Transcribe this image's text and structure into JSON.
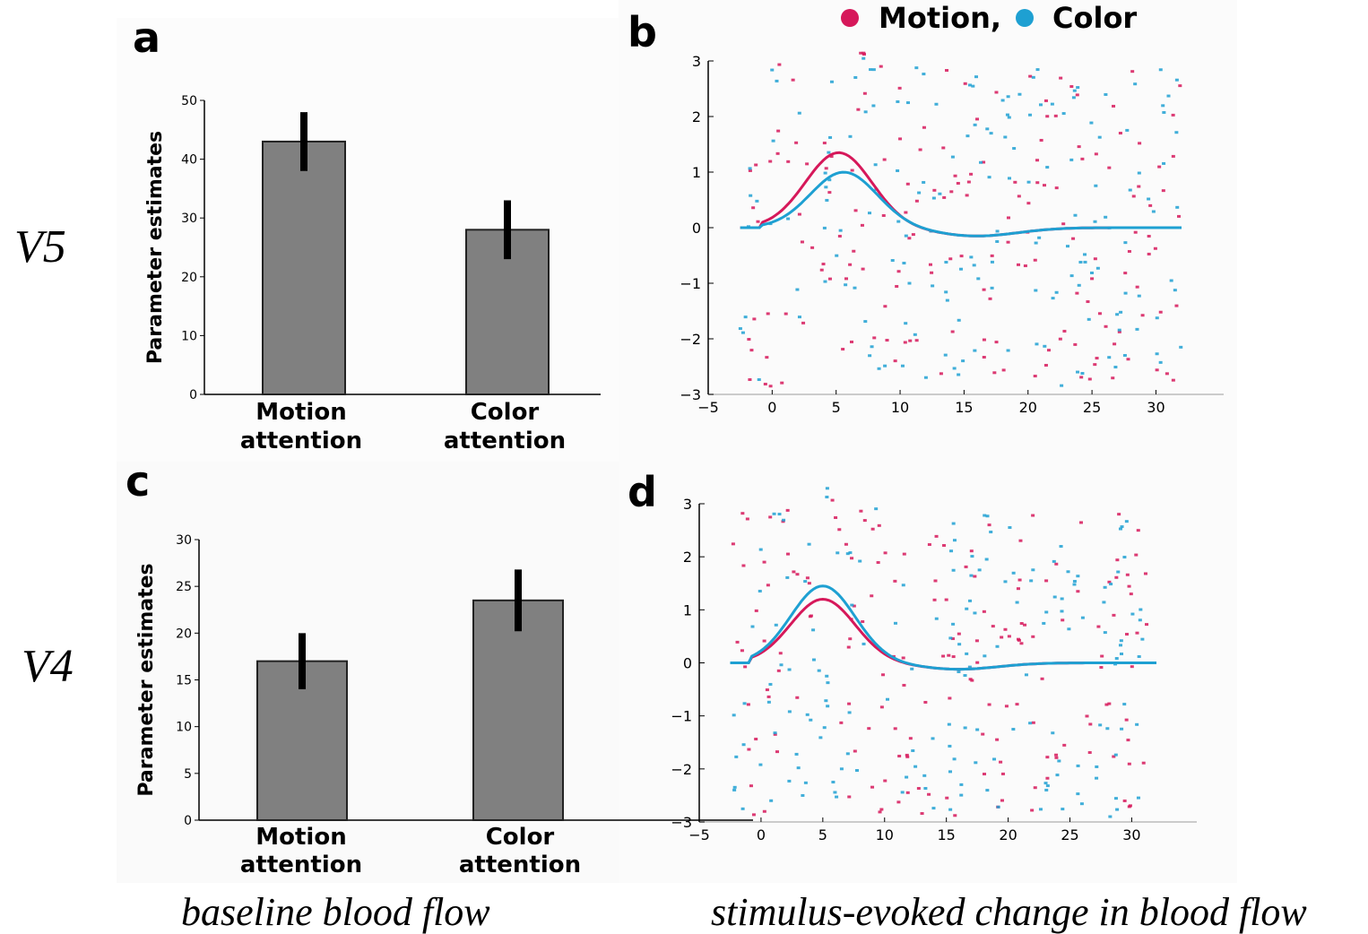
{
  "legend": {
    "items": [
      {
        "label": "Motion,",
        "color": "#d6185a"
      },
      {
        "label": "Color",
        "color": "#1ea0d2"
      }
    ]
  },
  "region_labels": {
    "top": "V5",
    "bottom": "V4"
  },
  "captions": {
    "left": "baseline blood flow",
    "right": "stimulus-evoked change in blood flow"
  },
  "chart_data": [
    {
      "panel": "a",
      "type": "bar",
      "ylabel": "Parameter estimates",
      "categories": [
        [
          "Motion",
          "attention"
        ],
        [
          "Color",
          "attention"
        ]
      ],
      "values": [
        43,
        28
      ],
      "errors": [
        5,
        5
      ],
      "ylim": [
        0,
        50
      ],
      "yticks": [
        0,
        10,
        20,
        30,
        40,
        50
      ],
      "bar_color": "#808080"
    },
    {
      "panel": "b",
      "type": "scatter",
      "xlim": [
        -5,
        32
      ],
      "ylim": [
        -3,
        3
      ],
      "xticks": [
        "-5",
        "0",
        "5",
        "10",
        "15",
        "20",
        "25",
        "30"
      ],
      "yticks": [
        "3",
        "2",
        "1",
        "0",
        "−1",
        "−2",
        "−3"
      ],
      "series": [
        {
          "name": "Motion",
          "color": "#d6185a",
          "curve_peak": 1.35,
          "curve_peak_x": 5.2
        },
        {
          "name": "Color",
          "color": "#1ea0d2",
          "curve_peak": 1.0,
          "curve_peak_x": 5.6
        }
      ],
      "undershoot": -0.15,
      "seed": 11
    },
    {
      "panel": "c",
      "type": "bar",
      "ylabel": "Parameter estimates",
      "categories": [
        [
          "Motion",
          "attention"
        ],
        [
          "Color",
          "attention"
        ]
      ],
      "values": [
        17,
        23.5
      ],
      "errors": [
        3,
        3.3
      ],
      "ylim": [
        0,
        30
      ],
      "yticks": [
        0,
        5,
        10,
        15,
        20,
        25,
        30
      ],
      "bar_color": "#808080"
    },
    {
      "panel": "d",
      "type": "scatter",
      "xlim": [
        -5,
        32
      ],
      "ylim": [
        -3,
        3
      ],
      "xticks": [
        "-5",
        "0",
        "5",
        "10",
        "15",
        "20",
        "25",
        "30"
      ],
      "yticks": [
        "3",
        "2",
        "1",
        "0",
        "−1",
        "−2",
        "−3"
      ],
      "series": [
        {
          "name": "Motion",
          "color": "#d6185a",
          "curve_peak": 1.2,
          "curve_peak_x": 5.0
        },
        {
          "name": "Color",
          "color": "#1ea0d2",
          "curve_peak": 1.45,
          "curve_peak_x": 5.0
        }
      ],
      "undershoot": -0.12,
      "seed": 29
    }
  ]
}
